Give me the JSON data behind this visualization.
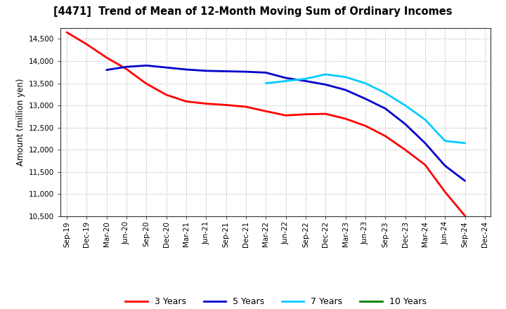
{
  "title": "[4471]  Trend of Mean of 12-Month Moving Sum of Ordinary Incomes",
  "ylabel": "Amount (million yen)",
  "background_color": "#ffffff",
  "plot_background": "#ffffff",
  "grid_color": "#b0b0b0",
  "ylim": [
    10500,
    14750
  ],
  "yticks": [
    10500,
    11000,
    11500,
    12000,
    12500,
    13000,
    13500,
    14000,
    14500
  ],
  "x_labels": [
    "Sep-19",
    "Dec-19",
    "Mar-20",
    "Jun-20",
    "Sep-20",
    "Dec-20",
    "Mar-21",
    "Jun-21",
    "Sep-21",
    "Dec-21",
    "Mar-22",
    "Jun-22",
    "Sep-22",
    "Dec-22",
    "Mar-23",
    "Jun-23",
    "Sep-23",
    "Dec-23",
    "Mar-24",
    "Jun-24",
    "Sep-24",
    "Dec-24"
  ],
  "series": [
    {
      "label": "3 Years",
      "color": "#ff0000",
      "linewidth": 2.0,
      "data": [
        [
          0,
          14650
        ],
        [
          1,
          14380
        ],
        [
          2,
          14080
        ],
        [
          3,
          13820
        ],
        [
          4,
          13490
        ],
        [
          5,
          13240
        ],
        [
          6,
          13090
        ],
        [
          7,
          13040
        ],
        [
          8,
          13010
        ],
        [
          9,
          12970
        ],
        [
          10,
          12870
        ],
        [
          11,
          12775
        ],
        [
          12,
          12800
        ],
        [
          13,
          12810
        ],
        [
          14,
          12700
        ],
        [
          15,
          12540
        ],
        [
          16,
          12310
        ],
        [
          17,
          12000
        ],
        [
          18,
          11660
        ],
        [
          19,
          11050
        ],
        [
          20,
          10510
        ]
      ]
    },
    {
      "label": "5 Years",
      "color": "#0000cc",
      "linewidth": 2.0,
      "data": [
        [
          2,
          13800
        ],
        [
          3,
          13870
        ],
        [
          4,
          13900
        ],
        [
          5,
          13855
        ],
        [
          6,
          13810
        ],
        [
          7,
          13780
        ],
        [
          8,
          13770
        ],
        [
          9,
          13760
        ],
        [
          10,
          13740
        ],
        [
          11,
          13620
        ],
        [
          12,
          13550
        ],
        [
          13,
          13470
        ],
        [
          14,
          13350
        ],
        [
          15,
          13150
        ],
        [
          16,
          12930
        ],
        [
          17,
          12580
        ],
        [
          18,
          12150
        ],
        [
          19,
          11640
        ],
        [
          20,
          11300
        ]
      ]
    },
    {
      "label": "7 Years",
      "color": "#00ccff",
      "linewidth": 2.0,
      "data": [
        [
          10,
          13500
        ],
        [
          11,
          13550
        ],
        [
          12,
          13600
        ],
        [
          13,
          13700
        ],
        [
          14,
          13640
        ],
        [
          15,
          13500
        ],
        [
          16,
          13280
        ],
        [
          17,
          13000
        ],
        [
          18,
          12680
        ],
        [
          19,
          12200
        ],
        [
          20,
          12150
        ]
      ]
    },
    {
      "label": "10 Years",
      "color": "#008000",
      "linewidth": 2.0,
      "data": []
    }
  ],
  "legend_labels": [
    "3 Years",
    "5 Years",
    "7 Years",
    "10 Years"
  ],
  "legend_colors": [
    "#ff0000",
    "#0000cc",
    "#00ccff",
    "#008000"
  ]
}
